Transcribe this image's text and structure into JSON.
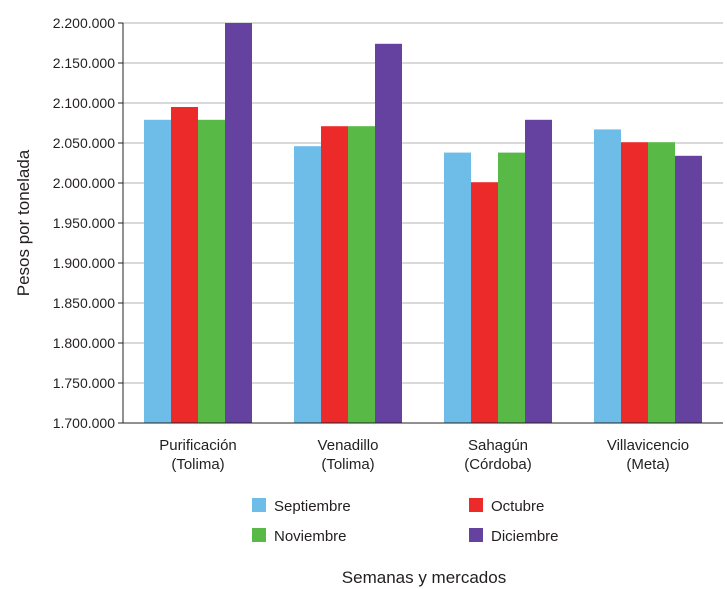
{
  "chart_data": {
    "type": "bar",
    "categories": [
      [
        "Purificación",
        "(Tolima)"
      ],
      [
        "Venadillo",
        "(Tolima)"
      ],
      [
        "Sahagún",
        "(Córdoba)"
      ],
      [
        "Villavicencio",
        "(Meta)"
      ]
    ],
    "series": [
      {
        "name": "Septiembre",
        "color": "#6ebde8",
        "values": [
          2079000,
          2046000,
          2038000,
          2067000
        ]
      },
      {
        "name": "Octubre",
        "color": "#ec2a2a",
        "values": [
          2095000,
          2071000,
          2001000,
          2051000
        ]
      },
      {
        "name": "Noviembre",
        "color": "#58b947",
        "values": [
          2079000,
          2071000,
          2038000,
          2051000
        ]
      },
      {
        "name": "Diciembre",
        "color": "#6541a0",
        "values": [
          2200000,
          2174000,
          2079000,
          2034000
        ]
      }
    ],
    "ylim": [
      1700000,
      2200000
    ],
    "yticks": [
      "1.700.000",
      "1.750.000",
      "1.800.000",
      "1.850.000",
      "1.900.000",
      "1.950.000",
      "2.000.000",
      "2.050.000",
      "2.100.000",
      "2.150.000",
      "2.200.000"
    ],
    "ylabel": "Pesos por tonelada",
    "xlabel": "Semanas y mercados",
    "grid": true,
    "legend_position": "bottom"
  }
}
